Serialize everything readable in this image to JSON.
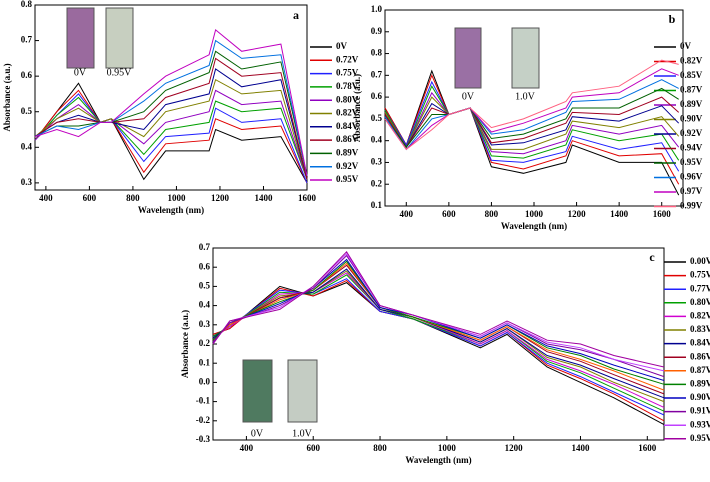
{
  "chart_data": [
    {
      "type": "line",
      "panel_label": "a",
      "x_label": "Wavelength (nm)",
      "y_label": "Absorbance (a.u.)",
      "inset_labels": [
        "0V",
        "0.95V"
      ],
      "xlim": [
        350,
        1600
      ],
      "xticks": [
        400,
        600,
        800,
        1000,
        1200,
        1400,
        1600
      ],
      "ylim": [
        0.28,
        0.8
      ],
      "yticks": [
        0.3,
        0.4,
        0.5,
        0.6,
        0.7,
        0.8
      ],
      "x": [
        350,
        450,
        550,
        650,
        700,
        850,
        950,
        1150,
        1180,
        1300,
        1480,
        1600
      ],
      "series": [
        {
          "name": "0V",
          "color": "#000000",
          "values": [
            0.42,
            0.5,
            0.58,
            0.47,
            0.48,
            0.31,
            0.39,
            0.39,
            0.45,
            0.42,
            0.43,
            0.3
          ]
        },
        {
          "name": "0.72V",
          "color": "#e00000",
          "values": [
            0.42,
            0.5,
            0.56,
            0.47,
            0.48,
            0.33,
            0.41,
            0.42,
            0.48,
            0.45,
            0.46,
            0.3
          ]
        },
        {
          "name": "0.75V",
          "color": "#2020ff",
          "values": [
            0.42,
            0.49,
            0.55,
            0.47,
            0.48,
            0.36,
            0.43,
            0.44,
            0.51,
            0.47,
            0.48,
            0.3
          ]
        },
        {
          "name": "0.78V",
          "color": "#00a000",
          "values": [
            0.42,
            0.49,
            0.54,
            0.47,
            0.48,
            0.38,
            0.45,
            0.47,
            0.53,
            0.5,
            0.51,
            0.31
          ]
        },
        {
          "name": "0.80V",
          "color": "#9000c0",
          "values": [
            0.42,
            0.48,
            0.52,
            0.47,
            0.48,
            0.41,
            0.47,
            0.5,
            0.56,
            0.52,
            0.53,
            0.31
          ]
        },
        {
          "name": "0.82V",
          "color": "#808000",
          "values": [
            0.43,
            0.48,
            0.51,
            0.47,
            0.48,
            0.43,
            0.5,
            0.53,
            0.59,
            0.55,
            0.56,
            0.31
          ]
        },
        {
          "name": "0.84V",
          "color": "#000090",
          "values": [
            0.43,
            0.47,
            0.49,
            0.47,
            0.47,
            0.45,
            0.52,
            0.55,
            0.62,
            0.57,
            0.59,
            0.31
          ]
        },
        {
          "name": "0.86V",
          "color": "#a00020",
          "values": [
            0.43,
            0.47,
            0.48,
            0.47,
            0.47,
            0.48,
            0.54,
            0.58,
            0.65,
            0.6,
            0.61,
            0.31
          ]
        },
        {
          "name": "0.89V",
          "color": "#006000",
          "values": [
            0.43,
            0.46,
            0.46,
            0.47,
            0.47,
            0.5,
            0.56,
            0.61,
            0.67,
            0.62,
            0.64,
            0.32
          ]
        },
        {
          "name": "0.92V",
          "color": "#0070e0",
          "values": [
            0.43,
            0.46,
            0.45,
            0.47,
            0.47,
            0.53,
            0.58,
            0.63,
            0.7,
            0.65,
            0.66,
            0.32
          ]
        },
        {
          "name": "0.95V",
          "color": "#c000c0",
          "values": [
            0.43,
            0.45,
            0.43,
            0.47,
            0.47,
            0.55,
            0.6,
            0.66,
            0.73,
            0.67,
            0.69,
            0.32
          ]
        }
      ]
    },
    {
      "type": "line",
      "panel_label": "b",
      "x_label": "Wavelength (nm)",
      "y_label": "Absorbance (a.u.)",
      "inset_labels": [
        "0V",
        "1.0V"
      ],
      "xlim": [
        300,
        1700
      ],
      "xticks": [
        400,
        600,
        800,
        1000,
        1200,
        1400,
        1600
      ],
      "ylim": [
        0.1,
        1.0
      ],
      "yticks": [
        0.1,
        0.2,
        0.3,
        0.4,
        0.5,
        0.6,
        0.7,
        0.8,
        0.9,
        {
          "value": 1,
          "label": "1.0"
        }
      ],
      "x": [
        300,
        400,
        520,
        600,
        700,
        800,
        950,
        1150,
        1180,
        1400,
        1600,
        1680
      ],
      "series": [
        {
          "name": "0V",
          "color": "#000000",
          "values": [
            0.55,
            0.38,
            0.72,
            0.52,
            0.55,
            0.28,
            0.25,
            0.3,
            0.38,
            0.3,
            0.3,
            0.15
          ]
        },
        {
          "name": "0.82V",
          "color": "#e00000",
          "values": [
            0.55,
            0.38,
            0.7,
            0.52,
            0.55,
            0.3,
            0.27,
            0.33,
            0.4,
            0.33,
            0.34,
            0.2
          ]
        },
        {
          "name": "0.85V",
          "color": "#2020ff",
          "values": [
            0.54,
            0.38,
            0.67,
            0.52,
            0.55,
            0.31,
            0.3,
            0.35,
            0.42,
            0.36,
            0.39,
            0.26
          ]
        },
        {
          "name": "0.87V",
          "color": "#00a000",
          "values": [
            0.54,
            0.37,
            0.65,
            0.52,
            0.55,
            0.33,
            0.32,
            0.38,
            0.45,
            0.4,
            0.43,
            0.31
          ]
        },
        {
          "name": "0.89V",
          "color": "#9000c0",
          "values": [
            0.53,
            0.37,
            0.62,
            0.52,
            0.55,
            0.35,
            0.34,
            0.4,
            0.47,
            0.43,
            0.47,
            0.37
          ]
        },
        {
          "name": "0.90V",
          "color": "#808000",
          "values": [
            0.53,
            0.37,
            0.6,
            0.52,
            0.55,
            0.36,
            0.36,
            0.43,
            0.49,
            0.46,
            0.51,
            0.42
          ]
        },
        {
          "name": "0.92V",
          "color": "#000090",
          "values": [
            0.52,
            0.37,
            0.57,
            0.52,
            0.55,
            0.38,
            0.39,
            0.45,
            0.51,
            0.49,
            0.56,
            0.48
          ]
        },
        {
          "name": "0.94V",
          "color": "#a00020",
          "values": [
            0.52,
            0.37,
            0.55,
            0.52,
            0.55,
            0.39,
            0.41,
            0.48,
            0.53,
            0.52,
            0.6,
            0.53
          ]
        },
        {
          "name": "0.95V",
          "color": "#006000",
          "values": [
            0.51,
            0.37,
            0.52,
            0.52,
            0.55,
            0.41,
            0.43,
            0.5,
            0.55,
            0.55,
            0.64,
            0.59
          ]
        },
        {
          "name": "0.96V",
          "color": "#0070e0",
          "values": [
            0.51,
            0.36,
            0.5,
            0.52,
            0.55,
            0.43,
            0.45,
            0.53,
            0.58,
            0.59,
            0.68,
            0.64
          ]
        },
        {
          "name": "0.97V",
          "color": "#c000c0",
          "values": [
            0.5,
            0.36,
            0.47,
            0.52,
            0.55,
            0.44,
            0.48,
            0.55,
            0.6,
            0.62,
            0.73,
            0.7
          ]
        },
        {
          "name": "0.99V",
          "color": "#ff6080",
          "values": [
            0.5,
            0.36,
            0.45,
            0.52,
            0.55,
            0.46,
            0.5,
            0.58,
            0.62,
            0.65,
            0.77,
            0.75
          ]
        }
      ]
    },
    {
      "type": "line",
      "panel_label": "c",
      "x_label": "Wavelength (nm)",
      "y_label": "Absorbance (a.u.)",
      "inset_labels": [
        "0V",
        "1.0V"
      ],
      "xlim": [
        300,
        1650
      ],
      "xticks": [
        400,
        600,
        800,
        1000,
        1200,
        1400,
        1600
      ],
      "ylim": [
        -0.3,
        0.7
      ],
      "yticks": [
        -0.3,
        -0.2,
        -0.1,
        {
          "value": 0,
          "label": "0.0"
        },
        0.1,
        0.2,
        0.3,
        0.4,
        0.5,
        0.6,
        0.7
      ],
      "x": [
        300,
        350,
        500,
        600,
        700,
        800,
        900,
        1100,
        1180,
        1300,
        1400,
        1500,
        1650
      ],
      "series": [
        {
          "name": "0.00V",
          "color": "#000000",
          "values": [
            0.25,
            0.28,
            0.5,
            0.45,
            0.52,
            0.37,
            0.33,
            0.18,
            0.25,
            0.08,
            0.0,
            -0.08,
            -0.22
          ]
        },
        {
          "name": "0.75V",
          "color": "#e00000",
          "values": [
            0.25,
            0.28,
            0.49,
            0.45,
            0.53,
            0.37,
            0.33,
            0.19,
            0.26,
            0.09,
            0.02,
            -0.06,
            -0.2
          ]
        },
        {
          "name": "0.77V",
          "color": "#2020ff",
          "values": [
            0.24,
            0.29,
            0.48,
            0.46,
            0.54,
            0.37,
            0.33,
            0.19,
            0.26,
            0.1,
            0.03,
            -0.05,
            -0.17
          ]
        },
        {
          "name": "0.80V",
          "color": "#00a000",
          "values": [
            0.24,
            0.29,
            0.47,
            0.46,
            0.56,
            0.38,
            0.33,
            0.2,
            0.27,
            0.11,
            0.05,
            -0.03,
            -0.15
          ]
        },
        {
          "name": "0.82V",
          "color": "#d000d0",
          "values": [
            0.23,
            0.29,
            0.46,
            0.47,
            0.57,
            0.38,
            0.34,
            0.2,
            0.27,
            0.12,
            0.06,
            -0.01,
            -0.13
          ]
        },
        {
          "name": "0.83V",
          "color": "#808000",
          "values": [
            0.23,
            0.3,
            0.45,
            0.47,
            0.58,
            0.38,
            0.34,
            0.21,
            0.28,
            0.13,
            0.08,
            0.0,
            -0.1
          ]
        },
        {
          "name": "0.84V",
          "color": "#000090",
          "values": [
            0.23,
            0.3,
            0.44,
            0.47,
            0.59,
            0.38,
            0.34,
            0.21,
            0.28,
            0.14,
            0.09,
            0.02,
            -0.08
          ]
        },
        {
          "name": "0.86V",
          "color": "#a00020",
          "values": [
            0.22,
            0.3,
            0.44,
            0.48,
            0.61,
            0.39,
            0.34,
            0.22,
            0.29,
            0.16,
            0.11,
            0.04,
            -0.06
          ]
        },
        {
          "name": "0.87V",
          "color": "#ff6000",
          "values": [
            0.22,
            0.3,
            0.43,
            0.48,
            0.62,
            0.39,
            0.34,
            0.22,
            0.29,
            0.17,
            0.12,
            0.06,
            -0.04
          ]
        },
        {
          "name": "0.89V",
          "color": "#008000",
          "values": [
            0.22,
            0.31,
            0.42,
            0.48,
            0.63,
            0.39,
            0.34,
            0.23,
            0.3,
            0.18,
            0.14,
            0.07,
            -0.01
          ]
        },
        {
          "name": "0.90V",
          "color": "#0000c0",
          "values": [
            0.21,
            0.31,
            0.41,
            0.49,
            0.64,
            0.39,
            0.35,
            0.23,
            0.3,
            0.19,
            0.15,
            0.09,
            0.01
          ]
        },
        {
          "name": "0.91V",
          "color": "#8000a0",
          "values": [
            0.21,
            0.31,
            0.4,
            0.49,
            0.66,
            0.4,
            0.35,
            0.24,
            0.31,
            0.2,
            0.17,
            0.12,
            0.03
          ]
        },
        {
          "name": "0.93V",
          "color": "#c040ff",
          "values": [
            0.2,
            0.32,
            0.39,
            0.5,
            0.67,
            0.4,
            0.35,
            0.24,
            0.31,
            0.21,
            0.18,
            0.12,
            0.06
          ]
        },
        {
          "name": "0.95V",
          "color": "#a000a0",
          "values": [
            0.2,
            0.32,
            0.38,
            0.5,
            0.68,
            0.4,
            0.35,
            0.25,
            0.32,
            0.22,
            0.2,
            0.14,
            0.08
          ]
        }
      ]
    }
  ]
}
